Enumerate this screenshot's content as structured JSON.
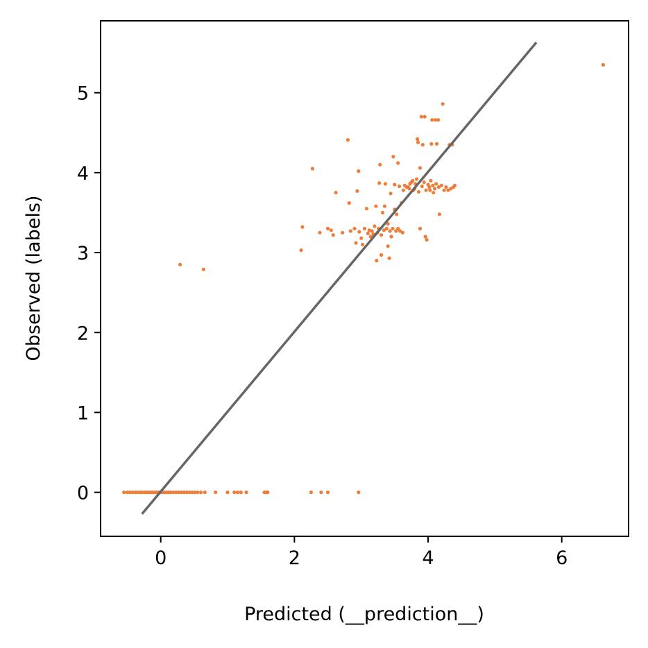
{
  "chart_data": {
    "type": "scatter",
    "title": "",
    "xlabel": "Predicted (__prediction__)",
    "ylabel": "Observed (labels)",
    "xlim": [
      -0.9,
      7.0
    ],
    "ylim": [
      -0.55,
      5.9
    ],
    "xticks": [
      0,
      2,
      4,
      6
    ],
    "yticks": [
      0,
      1,
      2,
      3,
      4,
      5
    ],
    "grid": false,
    "legend": "none",
    "point_color": "#ED7D3A",
    "line_color": "#666666",
    "reference_line": {
      "x": [
        -0.28,
        5.62
      ],
      "y": [
        -0.27,
        5.63
      ]
    },
    "points": [
      [
        -0.55,
        0
      ],
      [
        -0.5,
        0
      ],
      [
        -0.46,
        0
      ],
      [
        -0.42,
        0
      ],
      [
        -0.38,
        0
      ],
      [
        -0.35,
        0
      ],
      [
        -0.31,
        0
      ],
      [
        -0.28,
        0
      ],
      [
        -0.24,
        0
      ],
      [
        -0.21,
        0
      ],
      [
        -0.18,
        0
      ],
      [
        -0.15,
        0
      ],
      [
        -0.12,
        0
      ],
      [
        -0.09,
        0
      ],
      [
        -0.06,
        0
      ],
      [
        -0.03,
        0
      ],
      [
        0.0,
        0
      ],
      [
        0.03,
        0
      ],
      [
        0.06,
        0
      ],
      [
        0.09,
        0
      ],
      [
        0.12,
        0
      ],
      [
        0.15,
        0
      ],
      [
        0.19,
        0
      ],
      [
        0.23,
        0
      ],
      [
        0.27,
        0
      ],
      [
        0.31,
        0
      ],
      [
        0.35,
        0
      ],
      [
        0.39,
        0
      ],
      [
        0.43,
        0
      ],
      [
        0.47,
        0
      ],
      [
        0.51,
        0
      ],
      [
        0.55,
        0
      ],
      [
        0.6,
        0
      ],
      [
        0.66,
        0
      ],
      [
        0.82,
        0
      ],
      [
        1.0,
        0
      ],
      [
        1.1,
        0
      ],
      [
        1.15,
        0
      ],
      [
        1.2,
        0
      ],
      [
        1.28,
        0
      ],
      [
        1.55,
        0
      ],
      [
        1.58,
        0
      ],
      [
        1.6,
        0
      ],
      [
        2.25,
        0
      ],
      [
        2.4,
        0
      ],
      [
        2.5,
        0
      ],
      [
        2.96,
        0
      ],
      [
        0.29,
        2.85
      ],
      [
        0.64,
        2.79
      ],
      [
        6.62,
        5.35
      ],
      [
        2.1,
        3.03
      ],
      [
        2.12,
        3.32
      ],
      [
        2.27,
        4.05
      ],
      [
        2.38,
        3.25
      ],
      [
        2.5,
        3.3
      ],
      [
        2.55,
        3.28
      ],
      [
        2.58,
        3.22
      ],
      [
        2.62,
        3.75
      ],
      [
        2.72,
        3.25
      ],
      [
        2.8,
        4.41
      ],
      [
        2.82,
        3.62
      ],
      [
        2.84,
        3.27
      ],
      [
        2.9,
        3.3
      ],
      [
        2.92,
        3.12
      ],
      [
        2.94,
        3.77
      ],
      [
        2.96,
        4.02
      ],
      [
        2.97,
        3.26
      ],
      [
        3.0,
        3.18
      ],
      [
        3.02,
        3.1
      ],
      [
        3.05,
        3.3
      ],
      [
        3.08,
        3.55
      ],
      [
        3.1,
        3.24
      ],
      [
        3.12,
        3.28
      ],
      [
        3.14,
        3.2
      ],
      [
        3.16,
        3.27
      ],
      [
        3.18,
        3.23
      ],
      [
        3.2,
        3.33
      ],
      [
        3.22,
        3.58
      ],
      [
        3.23,
        2.9
      ],
      [
        3.24,
        3.25
      ],
      [
        3.26,
        3.3
      ],
      [
        3.27,
        3.87
      ],
      [
        3.28,
        4.1
      ],
      [
        3.3,
        3.22
      ],
      [
        3.3,
        2.97
      ],
      [
        3.32,
        3.5
      ],
      [
        3.34,
        3.28
      ],
      [
        3.35,
        3.58
      ],
      [
        3.36,
        3.86
      ],
      [
        3.38,
        3.3
      ],
      [
        3.4,
        3.36
      ],
      [
        3.4,
        3.08
      ],
      [
        3.42,
        2.93
      ],
      [
        3.43,
        3.27
      ],
      [
        3.44,
        3.74
      ],
      [
        3.45,
        3.2
      ],
      [
        3.47,
        3.3
      ],
      [
        3.48,
        4.2
      ],
      [
        3.5,
        3.85
      ],
      [
        3.5,
        3.54
      ],
      [
        3.52,
        3.27
      ],
      [
        3.53,
        3.48
      ],
      [
        3.55,
        4.12
      ],
      [
        3.55,
        3.3
      ],
      [
        3.57,
        3.83
      ],
      [
        3.58,
        3.27
      ],
      [
        3.6,
        3.62
      ],
      [
        3.62,
        3.25
      ],
      [
        3.63,
        3.78
      ],
      [
        3.65,
        3.84
      ],
      [
        3.68,
        3.82
      ],
      [
        3.7,
        3.82
      ],
      [
        3.72,
        3.8
      ],
      [
        3.73,
        3.86
      ],
      [
        3.75,
        3.88
      ],
      [
        3.77,
        3.9
      ],
      [
        3.78,
        3.78
      ],
      [
        3.8,
        3.8
      ],
      [
        3.81,
        3.86
      ],
      [
        3.83,
        3.92
      ],
      [
        3.84,
        4.42
      ],
      [
        3.85,
        4.38
      ],
      [
        3.86,
        3.76
      ],
      [
        3.88,
        4.06
      ],
      [
        3.88,
        3.3
      ],
      [
        3.9,
        4.7
      ],
      [
        3.91,
        3.83
      ],
      [
        3.92,
        4.35
      ],
      [
        3.94,
        3.88
      ],
      [
        3.95,
        4.7
      ],
      [
        3.96,
        3.2
      ],
      [
        3.97,
        3.78
      ],
      [
        3.98,
        3.16
      ],
      [
        4.0,
        3.85
      ],
      [
        4.02,
        3.82
      ],
      [
        4.03,
        3.78
      ],
      [
        4.04,
        3.9
      ],
      [
        4.05,
        4.36
      ],
      [
        4.06,
        4.66
      ],
      [
        4.07,
        3.84
      ],
      [
        4.08,
        3.75
      ],
      [
        4.1,
        3.8
      ],
      [
        4.11,
        4.66
      ],
      [
        4.12,
        3.86
      ],
      [
        4.13,
        4.36
      ],
      [
        4.15,
        4.66
      ],
      [
        4.16,
        3.82
      ],
      [
        4.17,
        3.48
      ],
      [
        4.2,
        3.84
      ],
      [
        4.22,
        4.86
      ],
      [
        4.24,
        3.78
      ],
      [
        4.27,
        3.82
      ],
      [
        4.3,
        3.78
      ],
      [
        4.32,
        4.35
      ],
      [
        4.34,
        3.8
      ],
      [
        4.36,
        4.35
      ],
      [
        4.38,
        3.82
      ],
      [
        4.4,
        3.84
      ]
    ]
  }
}
